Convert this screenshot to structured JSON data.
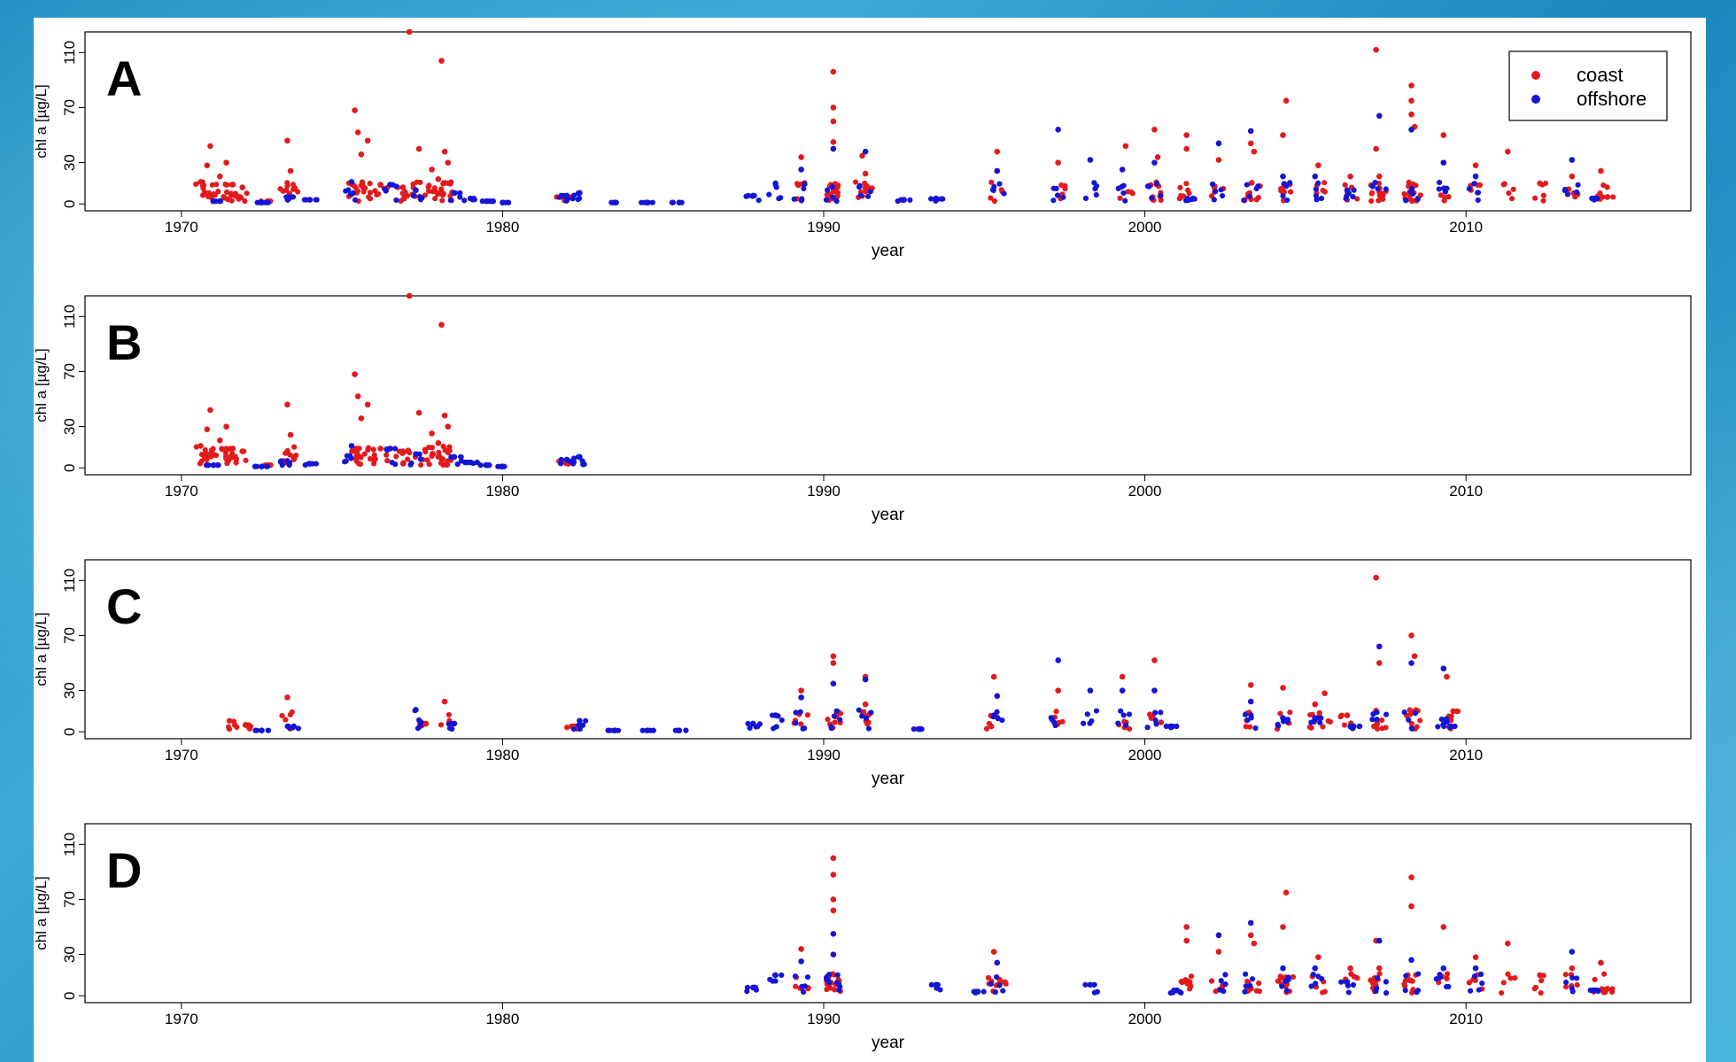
{
  "colors": {
    "coast": "#e31a1c",
    "offshore": "#1515d6"
  },
  "legend": {
    "coast": "coast",
    "offshore": "offshore"
  },
  "chart_data": [
    {
      "type": "scatter",
      "panel_label": "A",
      "xlabel": "year",
      "ylabel": "chl a [µg/L]",
      "xlim": [
        1967,
        2017
      ],
      "ylim": [
        -5,
        125
      ],
      "xticks": [
        1970,
        1980,
        1990,
        2000,
        2010
      ],
      "yticks": [
        0,
        30,
        70,
        110
      ],
      "legend": "top-right",
      "series": [
        {
          "name": "coast",
          "color": "#e31a1c",
          "points": [
            [
              1970.6,
              16
            ],
            [
              1970.8,
              28
            ],
            [
              1970.9,
              42
            ],
            [
              1971.2,
              20
            ],
            [
              1971.4,
              30
            ],
            [
              1971.6,
              14
            ],
            [
              1971.9,
              12
            ],
            [
              1972.7,
              2
            ],
            [
              1973.3,
              46
            ],
            [
              1973.4,
              24
            ],
            [
              1975.4,
              68
            ],
            [
              1975.5,
              52
            ],
            [
              1975.6,
              36
            ],
            [
              1975.8,
              46
            ],
            [
              1976.2,
              14
            ],
            [
              1976.9,
              12
            ],
            [
              1977.1,
              125
            ],
            [
              1977.4,
              40
            ],
            [
              1977.8,
              25
            ],
            [
              1978.0,
              18
            ],
            [
              1978.1,
              104
            ],
            [
              1978.2,
              38
            ],
            [
              1978.3,
              30
            ],
            [
              1981.9,
              5
            ],
            [
              1989.3,
              34
            ],
            [
              1990.3,
              96
            ],
            [
              1990.3,
              70
            ],
            [
              1990.3,
              60
            ],
            [
              1990.3,
              45
            ],
            [
              1991.2,
              35
            ],
            [
              1991.3,
              22
            ],
            [
              1995.4,
              38
            ],
            [
              1997.3,
              30
            ],
            [
              1999.4,
              42
            ],
            [
              2000.3,
              54
            ],
            [
              2000.4,
              34
            ],
            [
              2001.3,
              50
            ],
            [
              2001.3,
              40
            ],
            [
              2002.3,
              32
            ],
            [
              2003.3,
              44
            ],
            [
              2003.4,
              38
            ],
            [
              2004.3,
              50
            ],
            [
              2004.4,
              75
            ],
            [
              2005.4,
              28
            ],
            [
              2006.4,
              20
            ],
            [
              2007.2,
              112
            ],
            [
              2007.2,
              40
            ],
            [
              2007.3,
              20
            ],
            [
              2008.3,
              86
            ],
            [
              2008.3,
              75
            ],
            [
              2008.3,
              65
            ],
            [
              2008.4,
              56
            ],
            [
              2009.3,
              50
            ],
            [
              2010.3,
              28
            ],
            [
              2011.3,
              38
            ],
            [
              2012.3,
              15
            ],
            [
              2013.3,
              20
            ],
            [
              2014.2,
              24
            ],
            [
              2014.4,
              5
            ]
          ]
        },
        {
          "name": "offshore",
          "color": "#1515d6",
          "points": [
            [
              1971.0,
              2
            ],
            [
              1972.5,
              1
            ],
            [
              1973.3,
              5
            ],
            [
              1974.0,
              3
            ],
            [
              1975.3,
              16
            ],
            [
              1976.5,
              14
            ],
            [
              1977.3,
              10
            ],
            [
              1978.5,
              8
            ],
            [
              1979.0,
              4
            ],
            [
              1979.5,
              2
            ],
            [
              1980.0,
              1
            ],
            [
              1982.0,
              6
            ],
            [
              1982.4,
              8
            ],
            [
              1983.5,
              1
            ],
            [
              1984.5,
              1
            ],
            [
              1985.5,
              1
            ],
            [
              1987.8,
              6
            ],
            [
              1988.5,
              15
            ],
            [
              1989.3,
              25
            ],
            [
              1990.3,
              40
            ],
            [
              1991.3,
              38
            ],
            [
              1992.5,
              3
            ],
            [
              1993.5,
              4
            ],
            [
              1995.4,
              24
            ],
            [
              1997.3,
              54
            ],
            [
              1998.3,
              32
            ],
            [
              1999.3,
              25
            ],
            [
              2000.3,
              30
            ],
            [
              2001.5,
              4
            ],
            [
              2002.3,
              44
            ],
            [
              2003.3,
              53
            ],
            [
              2004.3,
              20
            ],
            [
              2005.3,
              20
            ],
            [
              2006.3,
              10
            ],
            [
              2007.3,
              64
            ],
            [
              2008.3,
              54
            ],
            [
              2009.3,
              30
            ],
            [
              2010.3,
              20
            ],
            [
              2013.3,
              32
            ],
            [
              2014.0,
              4
            ]
          ]
        }
      ]
    },
    {
      "type": "scatter",
      "panel_label": "B",
      "xlabel": "year",
      "ylabel": "chl a [µg/L]",
      "xlim": [
        1967,
        2017
      ],
      "ylim": [
        -5,
        125
      ],
      "xticks": [
        1970,
        1980,
        1990,
        2000,
        2010
      ],
      "yticks": [
        0,
        30,
        70,
        110
      ],
      "series": [
        {
          "name": "coast",
          "color": "#e31a1c",
          "points": [
            [
              1970.6,
              16
            ],
            [
              1970.8,
              28
            ],
            [
              1970.9,
              42
            ],
            [
              1971.2,
              20
            ],
            [
              1971.4,
              30
            ],
            [
              1971.6,
              14
            ],
            [
              1971.9,
              12
            ],
            [
              1972.7,
              2
            ],
            [
              1973.3,
              46
            ],
            [
              1973.4,
              24
            ],
            [
              1975.4,
              68
            ],
            [
              1975.5,
              52
            ],
            [
              1975.6,
              36
            ],
            [
              1975.8,
              46
            ],
            [
              1976.2,
              14
            ],
            [
              1976.9,
              12
            ],
            [
              1977.1,
              125
            ],
            [
              1977.4,
              40
            ],
            [
              1977.8,
              25
            ],
            [
              1978.0,
              18
            ],
            [
              1978.1,
              104
            ],
            [
              1978.2,
              38
            ],
            [
              1978.3,
              30
            ],
            [
              1981.9,
              5
            ]
          ]
        },
        {
          "name": "offshore",
          "color": "#1515d6",
          "points": [
            [
              1971.0,
              2
            ],
            [
              1972.5,
              1
            ],
            [
              1973.3,
              5
            ],
            [
              1974.0,
              3
            ],
            [
              1975.3,
              16
            ],
            [
              1976.5,
              14
            ],
            [
              1977.3,
              10
            ],
            [
              1978.5,
              8
            ],
            [
              1979.0,
              4
            ],
            [
              1979.5,
              2
            ],
            [
              1980.0,
              1
            ],
            [
              1982.0,
              6
            ],
            [
              1982.4,
              8
            ]
          ]
        }
      ]
    },
    {
      "type": "scatter",
      "panel_label": "C",
      "xlabel": "year",
      "ylabel": "chl a [µg/L]",
      "xlim": [
        1967,
        2017
      ],
      "ylim": [
        -5,
        125
      ],
      "xticks": [
        1970,
        1980,
        1990,
        2000,
        2010
      ],
      "yticks": [
        0,
        30,
        70,
        110
      ],
      "series": [
        {
          "name": "coast",
          "color": "#e31a1c",
          "points": [
            [
              1971.5,
              8
            ],
            [
              1972.0,
              5
            ],
            [
              1973.3,
              25
            ],
            [
              1977.5,
              6
            ],
            [
              1978.2,
              22
            ],
            [
              1982.2,
              4
            ],
            [
              1989.3,
              30
            ],
            [
              1990.3,
              55
            ],
            [
              1990.3,
              50
            ],
            [
              1991.3,
              40
            ],
            [
              1991.3,
              20
            ],
            [
              1995.3,
              40
            ],
            [
              1997.3,
              30
            ],
            [
              1999.3,
              40
            ],
            [
              2000.3,
              52
            ],
            [
              2003.3,
              34
            ],
            [
              2004.3,
              32
            ],
            [
              2005.3,
              20
            ],
            [
              2005.6,
              28
            ],
            [
              2006.3,
              12
            ],
            [
              2007.2,
              112
            ],
            [
              2007.3,
              50
            ],
            [
              2008.3,
              70
            ],
            [
              2008.4,
              55
            ],
            [
              2009.4,
              40
            ],
            [
              2009.6,
              15
            ]
          ]
        },
        {
          "name": "offshore",
          "color": "#1515d6",
          "points": [
            [
              1972.5,
              1
            ],
            [
              1973.5,
              4
            ],
            [
              1977.3,
              16
            ],
            [
              1978.5,
              6
            ],
            [
              1982.4,
              8
            ],
            [
              1983.5,
              1
            ],
            [
              1984.5,
              1
            ],
            [
              1985.5,
              1
            ],
            [
              1987.8,
              6
            ],
            [
              1988.5,
              12
            ],
            [
              1989.3,
              25
            ],
            [
              1990.3,
              35
            ],
            [
              1991.3,
              38
            ],
            [
              1993.0,
              2
            ],
            [
              1995.4,
              26
            ],
            [
              1997.3,
              52
            ],
            [
              1998.3,
              30
            ],
            [
              1999.3,
              30
            ],
            [
              2000.3,
              30
            ],
            [
              2000.8,
              4
            ],
            [
              2003.3,
              22
            ],
            [
              2004.3,
              10
            ],
            [
              2005.3,
              10
            ],
            [
              2006.5,
              4
            ],
            [
              2007.3,
              62
            ],
            [
              2008.3,
              50
            ],
            [
              2009.3,
              46
            ],
            [
              2009.5,
              4
            ]
          ]
        }
      ]
    },
    {
      "type": "scatter",
      "panel_label": "D",
      "xlabel": "year",
      "ylabel": "chl a [µg/L]",
      "xlim": [
        1967,
        2017
      ],
      "ylim": [
        -5,
        125
      ],
      "xticks": [
        1970,
        1980,
        1990,
        2000,
        2010
      ],
      "yticks": [
        0,
        30,
        70,
        110
      ],
      "series": [
        {
          "name": "coast",
          "color": "#e31a1c",
          "points": [
            [
              1989.3,
              34
            ],
            [
              1990.3,
              100
            ],
            [
              1990.3,
              88
            ],
            [
              1990.3,
              70
            ],
            [
              1990.3,
              62
            ],
            [
              1995.3,
              32
            ],
            [
              1995.5,
              10
            ],
            [
              2001.3,
              50
            ],
            [
              2001.3,
              40
            ],
            [
              2002.3,
              32
            ],
            [
              2003.3,
              44
            ],
            [
              2003.4,
              38
            ],
            [
              2004.3,
              50
            ],
            [
              2004.4,
              75
            ],
            [
              2005.4,
              28
            ],
            [
              2006.4,
              20
            ],
            [
              2007.2,
              40
            ],
            [
              2007.3,
              20
            ],
            [
              2008.3,
              86
            ],
            [
              2008.3,
              65
            ],
            [
              2009.3,
              50
            ],
            [
              2010.3,
              28
            ],
            [
              2011.3,
              38
            ],
            [
              2012.3,
              15
            ],
            [
              2013.3,
              20
            ],
            [
              2014.2,
              24
            ],
            [
              2014.4,
              5
            ]
          ]
        },
        {
          "name": "offshore",
          "color": "#1515d6",
          "points": [
            [
              1987.8,
              6
            ],
            [
              1988.5,
              15
            ],
            [
              1989.3,
              25
            ],
            [
              1990.3,
              45
            ],
            [
              1990.3,
              30
            ],
            [
              1993.5,
              8
            ],
            [
              1994.8,
              3
            ],
            [
              1995.4,
              24
            ],
            [
              1998.3,
              8
            ],
            [
              2001.0,
              4
            ],
            [
              2002.3,
              44
            ],
            [
              2003.3,
              53
            ],
            [
              2004.3,
              20
            ],
            [
              2005.3,
              20
            ],
            [
              2006.3,
              10
            ],
            [
              2007.3,
              40
            ],
            [
              2008.3,
              26
            ],
            [
              2009.3,
              20
            ],
            [
              2010.3,
              20
            ],
            [
              2013.3,
              32
            ],
            [
              2014.0,
              4
            ]
          ]
        }
      ]
    }
  ]
}
